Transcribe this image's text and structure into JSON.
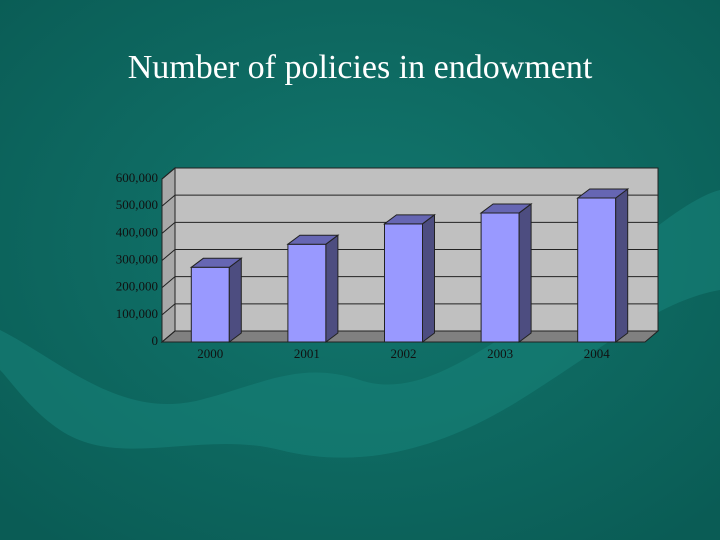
{
  "chart_data": {
    "type": "bar3d",
    "title": "Number of policies in endowment",
    "categories": [
      "2000",
      "2001",
      "2002",
      "2003",
      "2004"
    ],
    "values": [
      275000,
      360000,
      435000,
      475000,
      530000
    ],
    "color": "#9999ff",
    "ylim": [
      0,
      600000
    ],
    "yticks": [
      0,
      {
        "value": 100000,
        "label": "100,000"
      },
      {
        "value": 200000,
        "label": "200,000"
      },
      {
        "value": 300000,
        "label": "300,000"
      },
      {
        "value": 400000,
        "label": "400,000"
      },
      {
        "value": 500000,
        "label": "500,000"
      },
      {
        "value": 600000,
        "label": "600,000"
      }
    ],
    "grid": true
  }
}
